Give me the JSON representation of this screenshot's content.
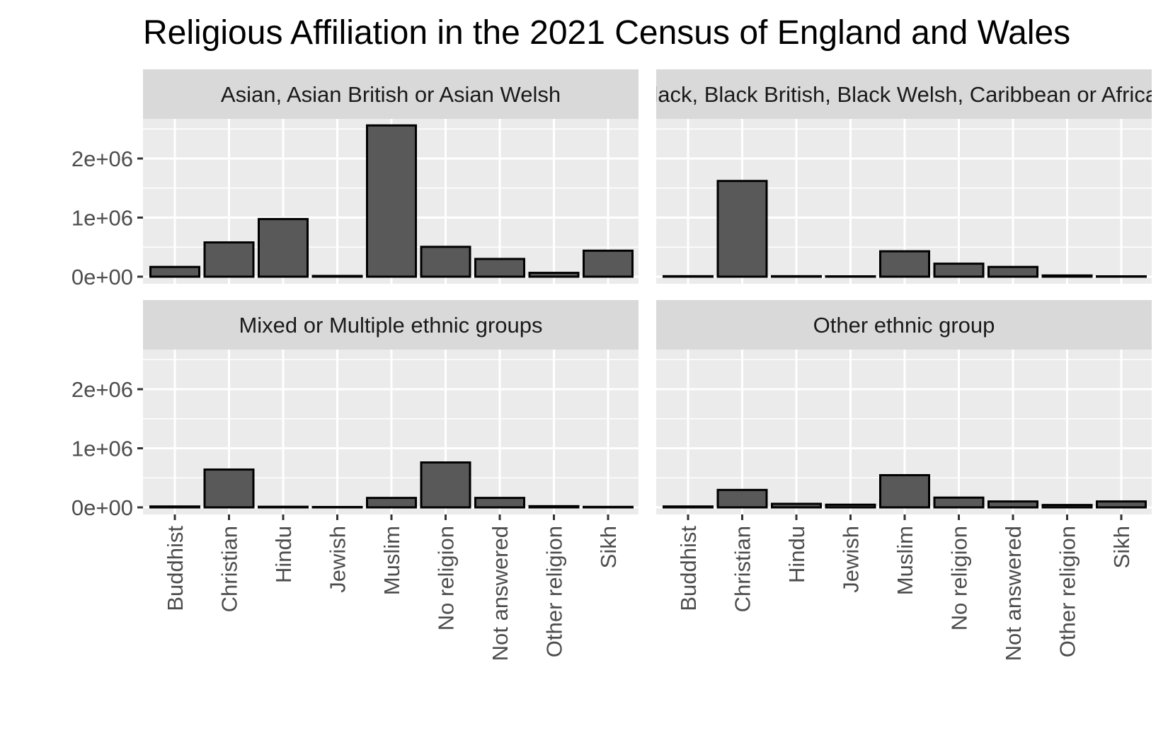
{
  "chart_data": {
    "type": "bar",
    "title": "Religious Affiliation in the 2021 Census of England and Wales",
    "xlabel": "",
    "ylabel": "",
    "ylim": [
      0,
      2700000
    ],
    "y_ticks": [
      {
        "value": 0,
        "label": "0e+00"
      },
      {
        "value": 1000000,
        "label": "1e+06"
      },
      {
        "value": 2000000,
        "label": "2e+06"
      }
    ],
    "grid": true,
    "categories": [
      "Buddhist",
      "Christian",
      "Hindu",
      "Jewish",
      "Muslim",
      "No religion",
      "Not answered",
      "Other religion",
      "Sikh"
    ],
    "bar_fill": "#595959",
    "bar_stroke": "#000000",
    "panel_bg": "#ebebeb",
    "strip_bg": "#d9d9d9",
    "grid_color": "#ffffff",
    "panels": [
      {
        "name": "Asian, Asian British or Asian Welsh",
        "values": [
          165000,
          580000,
          975000,
          12000,
          2560000,
          505000,
          300000,
          65000,
          440000
        ]
      },
      {
        "name": "Black, Black British, Black Welsh, Caribbean or African",
        "values": [
          8000,
          1620000,
          8000,
          6000,
          430000,
          220000,
          165000,
          20000,
          5000
        ]
      },
      {
        "name": "Mixed or Multiple ethnic groups",
        "values": [
          15000,
          640000,
          10000,
          6000,
          160000,
          760000,
          160000,
          20000,
          8000
        ]
      },
      {
        "name": "Other ethnic group",
        "values": [
          15000,
          295000,
          60000,
          45000,
          545000,
          165000,
          100000,
          40000,
          100000
        ]
      }
    ]
  }
}
